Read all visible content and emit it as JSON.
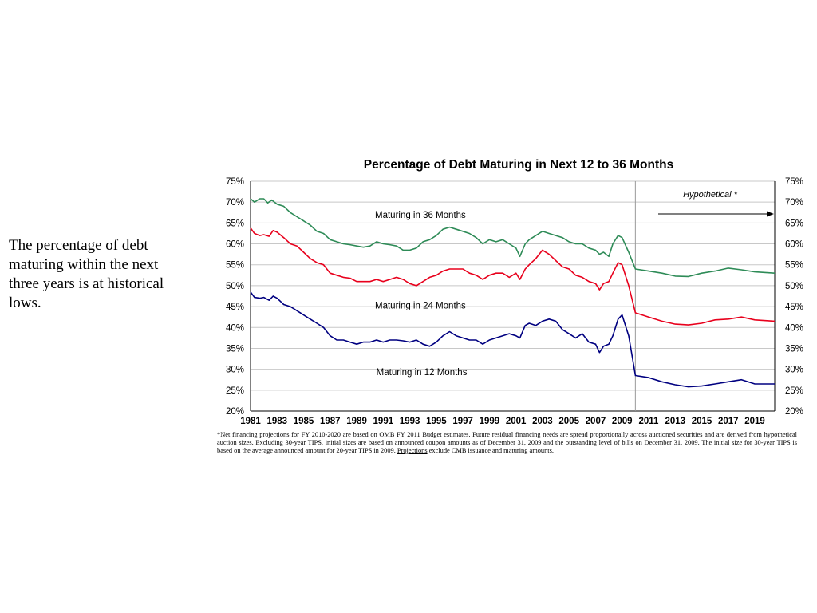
{
  "side_text": "The percentage of debt maturing within the next three years is at historical lows.",
  "footnote": {
    "part1": "*Net financing projections for FY 2010-2020 are based on OMB FY 2011 Budget estimates. Future residual financing needs are spread proportionally across auctioned securities and are derived from hypothetical auction sizes. Excluding 30-year TIPS, initial sizes are based on announced coupon amounts as of December 31, 2009 and the outstanding level of bills on December 31, 2009. The initial size for 30-year TIPS is based on the average announced amount for 20-year TIPS in 2009. ",
    "underlined": "Projections",
    "part2": " exclude CMB issuance and maturing amounts."
  },
  "chart_data": {
    "type": "line",
    "title": "Percentage of Debt Maturing in Next 12 to 36 Months",
    "xlabel": "",
    "ylabel": "",
    "xlim": [
      1981,
      2020.5
    ],
    "ylim": [
      20,
      75
    ],
    "x_ticks": [
      "1981",
      "1983",
      "1985",
      "1987",
      "1989",
      "1991",
      "1993",
      "1995",
      "1997",
      "1999",
      "2001",
      "2003",
      "2005",
      "2007",
      "2009",
      "2011",
      "2013",
      "2015",
      "2017",
      "2019"
    ],
    "y_ticks": [
      "20%",
      "25%",
      "30%",
      "35%",
      "40%",
      "45%",
      "50%",
      "55%",
      "60%",
      "65%",
      "70%",
      "75%"
    ],
    "grid": true,
    "divider_x": 2010,
    "annotation": "Hypothetical *",
    "colors": {
      "m36": "#2e8b57",
      "m24": "#e8001c",
      "m12": "#000080",
      "grid": "#c8c8c8",
      "divider": "#999999"
    },
    "series": [
      {
        "name": "Maturing in 36 Months",
        "color": "#2e8b57",
        "points": [
          [
            1981,
            70.8
          ],
          [
            1981.3,
            70
          ],
          [
            1981.7,
            70.8
          ],
          [
            1982,
            70.8
          ],
          [
            1982.3,
            69.8
          ],
          [
            1982.6,
            70.5
          ],
          [
            1983,
            69.5
          ],
          [
            1983.5,
            69
          ],
          [
            1984,
            67.5
          ],
          [
            1984.5,
            66.5
          ],
          [
            1985,
            65.5
          ],
          [
            1985.5,
            64.5
          ],
          [
            1986,
            63
          ],
          [
            1986.5,
            62.5
          ],
          [
            1987,
            61
          ],
          [
            1987.5,
            60.5
          ],
          [
            1988,
            60
          ],
          [
            1988.5,
            59.8
          ],
          [
            1989,
            59.5
          ],
          [
            1989.5,
            59.2
          ],
          [
            1990,
            59.5
          ],
          [
            1990.5,
            60.5
          ],
          [
            1991,
            60
          ],
          [
            1991.5,
            59.8
          ],
          [
            1992,
            59.5
          ],
          [
            1992.5,
            58.5
          ],
          [
            1993,
            58.5
          ],
          [
            1993.5,
            59
          ],
          [
            1994,
            60.5
          ],
          [
            1994.5,
            61
          ],
          [
            1995,
            62
          ],
          [
            1995.5,
            63.5
          ],
          [
            1996,
            64
          ],
          [
            1996.5,
            63.5
          ],
          [
            1997,
            63
          ],
          [
            1997.5,
            62.5
          ],
          [
            1998,
            61.5
          ],
          [
            1998.5,
            60
          ],
          [
            1999,
            61
          ],
          [
            1999.5,
            60.5
          ],
          [
            2000,
            61
          ],
          [
            2000.5,
            60
          ],
          [
            2001,
            59
          ],
          [
            2001.3,
            57
          ],
          [
            2001.7,
            60
          ],
          [
            2002,
            61
          ],
          [
            2002.5,
            62
          ],
          [
            2003,
            63
          ],
          [
            2003.5,
            62.5
          ],
          [
            2004,
            62
          ],
          [
            2004.5,
            61.5
          ],
          [
            2005,
            60.5
          ],
          [
            2005.5,
            60
          ],
          [
            2006,
            60
          ],
          [
            2006.5,
            59
          ],
          [
            2007,
            58.5
          ],
          [
            2007.3,
            57.5
          ],
          [
            2007.6,
            58
          ],
          [
            2008,
            57
          ],
          [
            2008.3,
            60
          ],
          [
            2008.7,
            62
          ],
          [
            2009,
            61.5
          ],
          [
            2009.5,
            58
          ],
          [
            2010,
            54
          ],
          [
            2011,
            53.5
          ],
          [
            2012,
            53
          ],
          [
            2013,
            52.3
          ],
          [
            2014,
            52.2
          ],
          [
            2015,
            53
          ],
          [
            2016,
            53.5
          ],
          [
            2017,
            54.2
          ],
          [
            2018,
            53.8
          ],
          [
            2019,
            53.3
          ],
          [
            2020.5,
            53
          ]
        ]
      },
      {
        "name": "Maturing in 24 Months",
        "color": "#e8001c",
        "points": [
          [
            1981,
            63.8
          ],
          [
            1981.3,
            62.5
          ],
          [
            1981.7,
            62
          ],
          [
            1982,
            62.2
          ],
          [
            1982.4,
            61.8
          ],
          [
            1982.7,
            63.2
          ],
          [
            1983,
            62.8
          ],
          [
            1983.5,
            61.5
          ],
          [
            1984,
            60
          ],
          [
            1984.5,
            59.5
          ],
          [
            1985,
            58
          ],
          [
            1985.5,
            56.5
          ],
          [
            1986,
            55.5
          ],
          [
            1986.5,
            55
          ],
          [
            1987,
            53
          ],
          [
            1987.5,
            52.5
          ],
          [
            1988,
            52
          ],
          [
            1988.5,
            51.8
          ],
          [
            1989,
            51
          ],
          [
            1989.5,
            51
          ],
          [
            1990,
            51
          ],
          [
            1990.5,
            51.5
          ],
          [
            1991,
            51
          ],
          [
            1991.5,
            51.5
          ],
          [
            1992,
            52
          ],
          [
            1992.5,
            51.5
          ],
          [
            1993,
            50.5
          ],
          [
            1993.5,
            50
          ],
          [
            1994,
            51
          ],
          [
            1994.5,
            52
          ],
          [
            1995,
            52.5
          ],
          [
            1995.5,
            53.5
          ],
          [
            1996,
            54
          ],
          [
            1996.5,
            54
          ],
          [
            1997,
            54
          ],
          [
            1997.5,
            53
          ],
          [
            1998,
            52.5
          ],
          [
            1998.5,
            51.5
          ],
          [
            1999,
            52.5
          ],
          [
            1999.5,
            53
          ],
          [
            2000,
            53
          ],
          [
            2000.5,
            52
          ],
          [
            2001,
            53
          ],
          [
            2001.3,
            51.5
          ],
          [
            2001.7,
            54
          ],
          [
            2002,
            55
          ],
          [
            2002.5,
            56.5
          ],
          [
            2003,
            58.5
          ],
          [
            2003.5,
            57.5
          ],
          [
            2004,
            56
          ],
          [
            2004.5,
            54.5
          ],
          [
            2005,
            54
          ],
          [
            2005.5,
            52.5
          ],
          [
            2006,
            52
          ],
          [
            2006.5,
            51
          ],
          [
            2007,
            50.5
          ],
          [
            2007.3,
            49
          ],
          [
            2007.6,
            50.5
          ],
          [
            2008,
            51
          ],
          [
            2008.3,
            53
          ],
          [
            2008.7,
            55.5
          ],
          [
            2009,
            55
          ],
          [
            2009.5,
            50
          ],
          [
            2010,
            43.5
          ],
          [
            2011,
            42.5
          ],
          [
            2012,
            41.5
          ],
          [
            2013,
            40.8
          ],
          [
            2014,
            40.6
          ],
          [
            2015,
            41
          ],
          [
            2016,
            41.8
          ],
          [
            2017,
            42
          ],
          [
            2018,
            42.5
          ],
          [
            2019,
            41.8
          ],
          [
            2020.5,
            41.5
          ]
        ]
      },
      {
        "name": "Maturing in 12 Months",
        "color": "#000080",
        "points": [
          [
            1981,
            48.5
          ],
          [
            1981.3,
            47.2
          ],
          [
            1981.7,
            47
          ],
          [
            1982,
            47.2
          ],
          [
            1982.4,
            46.5
          ],
          [
            1982.7,
            47.5
          ],
          [
            1983,
            47
          ],
          [
            1983.5,
            45.5
          ],
          [
            1984,
            45
          ],
          [
            1984.5,
            44
          ],
          [
            1985,
            43
          ],
          [
            1985.5,
            42
          ],
          [
            1986,
            41
          ],
          [
            1986.5,
            40
          ],
          [
            1987,
            38
          ],
          [
            1987.5,
            37
          ],
          [
            1988,
            37
          ],
          [
            1988.5,
            36.5
          ],
          [
            1989,
            36
          ],
          [
            1989.5,
            36.5
          ],
          [
            1990,
            36.5
          ],
          [
            1990.5,
            37
          ],
          [
            1991,
            36.5
          ],
          [
            1991.5,
            37
          ],
          [
            1992,
            37
          ],
          [
            1992.5,
            36.8
          ],
          [
            1993,
            36.5
          ],
          [
            1993.5,
            37
          ],
          [
            1994,
            36
          ],
          [
            1994.5,
            35.5
          ],
          [
            1995,
            36.5
          ],
          [
            1995.5,
            38
          ],
          [
            1996,
            39
          ],
          [
            1996.5,
            38
          ],
          [
            1997,
            37.5
          ],
          [
            1997.5,
            37
          ],
          [
            1998,
            37
          ],
          [
            1998.5,
            36
          ],
          [
            1999,
            37
          ],
          [
            1999.5,
            37.5
          ],
          [
            2000,
            38
          ],
          [
            2000.5,
            38.5
          ],
          [
            2001,
            38
          ],
          [
            2001.3,
            37.5
          ],
          [
            2001.7,
            40.5
          ],
          [
            2002,
            41
          ],
          [
            2002.5,
            40.5
          ],
          [
            2003,
            41.5
          ],
          [
            2003.5,
            42
          ],
          [
            2004,
            41.5
          ],
          [
            2004.5,
            39.5
          ],
          [
            2005,
            38.5
          ],
          [
            2005.5,
            37.5
          ],
          [
            2006,
            38.5
          ],
          [
            2006.5,
            36.5
          ],
          [
            2007,
            36
          ],
          [
            2007.3,
            34
          ],
          [
            2007.6,
            35.5
          ],
          [
            2008,
            36
          ],
          [
            2008.3,
            38
          ],
          [
            2008.7,
            42
          ],
          [
            2009,
            43
          ],
          [
            2009.5,
            38
          ],
          [
            2010,
            28.5
          ],
          [
            2011,
            28
          ],
          [
            2012,
            27
          ],
          [
            2013,
            26.3
          ],
          [
            2014,
            25.8
          ],
          [
            2015,
            26
          ],
          [
            2016,
            26.5
          ],
          [
            2017,
            27
          ],
          [
            2018,
            27.5
          ],
          [
            2019,
            26.5
          ],
          [
            2020.5,
            26.5
          ]
        ]
      }
    ]
  }
}
